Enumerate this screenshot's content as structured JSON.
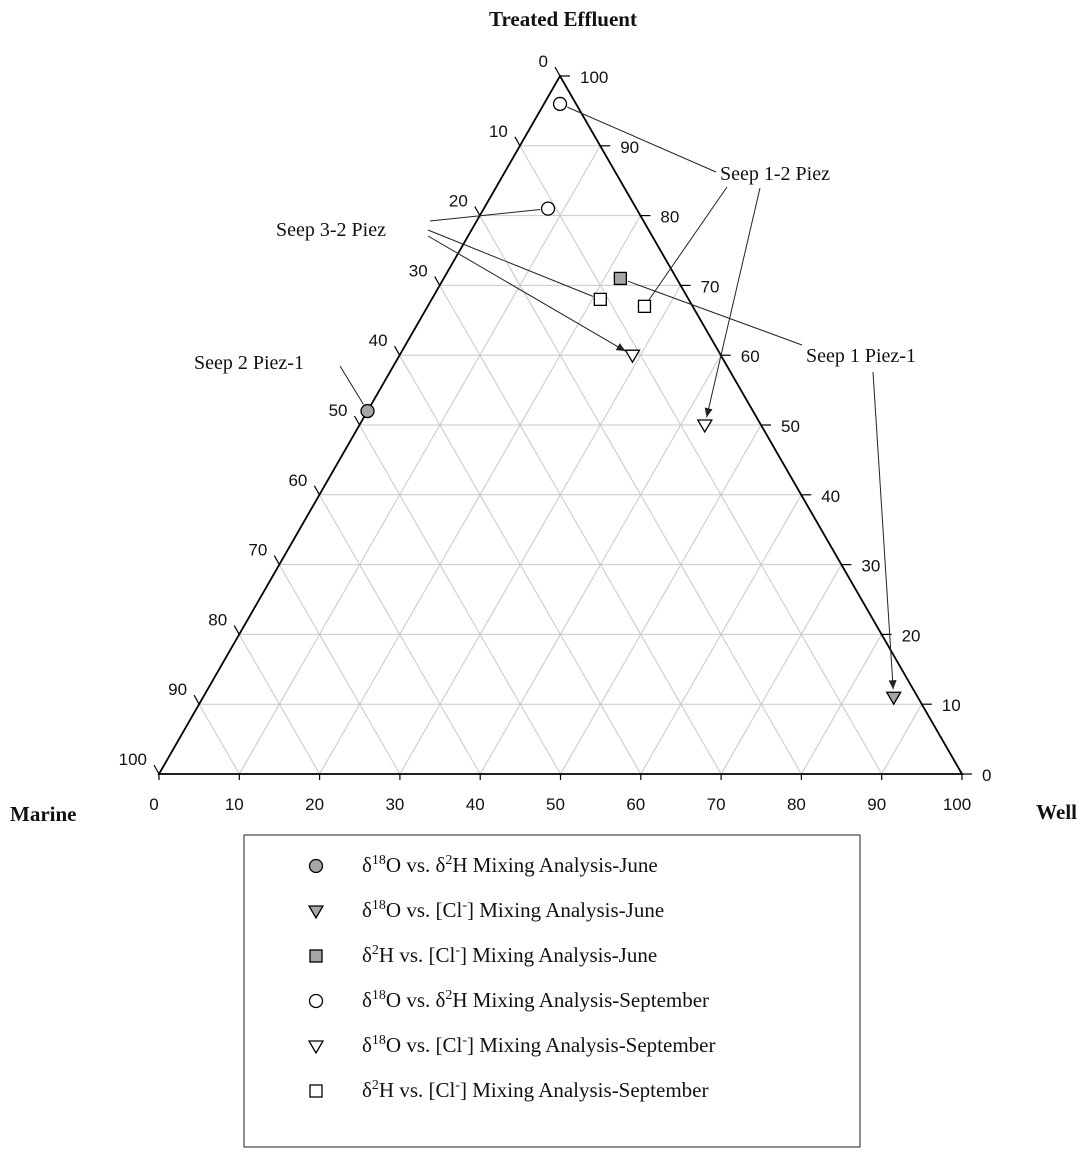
{
  "chart_data": {
    "type": "scatter",
    "subtype": "ternary",
    "axes": {
      "top": "Treated Effluent",
      "left": "Marine",
      "right": "Well"
    },
    "ticks": [
      0,
      10,
      20,
      30,
      40,
      50,
      60,
      70,
      80,
      90,
      100
    ],
    "range": [
      0,
      100
    ],
    "grid": true,
    "colors": {
      "june_fill": "#a6a6a6",
      "september_fill": "#ffffff",
      "grid": "#c8c8c8",
      "outline": "#000000"
    },
    "series": [
      {
        "name": "δ18O vs. δ2H Mixing Analysis-June",
        "marker": "circle",
        "fill": "#a6a6a6",
        "points": [
          {
            "treated_effluent": 52,
            "marine": 48,
            "well": 0
          }
        ]
      },
      {
        "name": "δ18O vs. [Cl-] Mixing Analysis-June",
        "marker": "triangle-down",
        "fill": "#a6a6a6",
        "points": [
          {
            "treated_effluent": 11,
            "marine": 3,
            "well": 86
          }
        ]
      },
      {
        "name": "δ2H vs. [Cl-] Mixing Analysis-June",
        "marker": "square",
        "fill": "#a6a6a6",
        "points": [
          {
            "treated_effluent": 71,
            "marine": 7,
            "well": 22
          }
        ]
      },
      {
        "name": "δ18O vs. δ2H Mixing Analysis-September",
        "marker": "circle",
        "fill": "#ffffff",
        "points": [
          {
            "treated_effluent": 96,
            "marine": 2,
            "well": 2
          },
          {
            "treated_effluent": 81,
            "marine": 11,
            "well": 8
          }
        ]
      },
      {
        "name": "δ18O vs. [Cl-] Mixing Analysis-September",
        "marker": "triangle-down",
        "fill": "#ffffff",
        "points": [
          {
            "treated_effluent": 60,
            "marine": 11,
            "well": 29
          },
          {
            "treated_effluent": 50,
            "marine": 7,
            "well": 43
          }
        ]
      },
      {
        "name": "δ2H vs. [Cl-] Mixing Analysis-September",
        "marker": "square",
        "fill": "#ffffff",
        "points": [
          {
            "treated_effluent": 68,
            "marine": 11,
            "well": 21
          },
          {
            "treated_effluent": 67,
            "marine": 6,
            "well": 27
          }
        ]
      }
    ],
    "annotations": [
      {
        "text": "Seep 1-2 Piez",
        "points_to": [
          "δ18O vs. δ2H September (96, 2, 2)",
          "δ2H vs. [Cl-] September (67, 6, 27)",
          "δ18O vs. [Cl-] September (50, 7, 43)"
        ]
      },
      {
        "text": "Seep 3-2 Piez",
        "points_to": [
          "δ18O vs. δ2H September (81, 11, 8)",
          "δ2H vs. [Cl-] September (68, 11, 21)",
          "δ18O vs. [Cl-] September (60, 11, 29)"
        ]
      },
      {
        "text": "Seep 2 Piez-1",
        "points_to": [
          "δ18O vs. δ2H June (52, 48, 0)"
        ]
      },
      {
        "text": "Seep 1 Piez-1",
        "points_to": [
          "δ2H vs. [Cl-] June (71, 7, 22)",
          "δ18O vs. [Cl-] June (11, 3, 86)"
        ]
      }
    ],
    "legend": {
      "placement": "bottom",
      "entries": [
        {
          "prefix": "δ",
          "sup1": "18",
          "mid1": "O vs. δ",
          "sup2": "2",
          "rest": "H Mixing Analysis-June"
        },
        {
          "prefix": "δ",
          "sup1": "18",
          "mid1": "O vs. [Cl",
          "sup2": "-",
          "rest": "] Mixing Analysis-June"
        },
        {
          "prefix": "δ",
          "sup1": "2",
          "mid1": "H vs. [Cl",
          "sup2": "-",
          "rest": "] Mixing Analysis-June"
        },
        {
          "prefix": "δ",
          "sup1": "18",
          "mid1": "O vs. δ",
          "sup2": "2",
          "rest": "H Mixing Analysis-September"
        },
        {
          "prefix": "δ",
          "sup1": "18",
          "mid1": "O vs. [Cl",
          "sup2": "-",
          "rest": "] Mixing Analysis-September"
        },
        {
          "prefix": "δ",
          "sup1": "2",
          "mid1": "H vs. [Cl",
          "sup2": "-",
          "rest": "] Mixing Analysis-September"
        }
      ]
    }
  }
}
